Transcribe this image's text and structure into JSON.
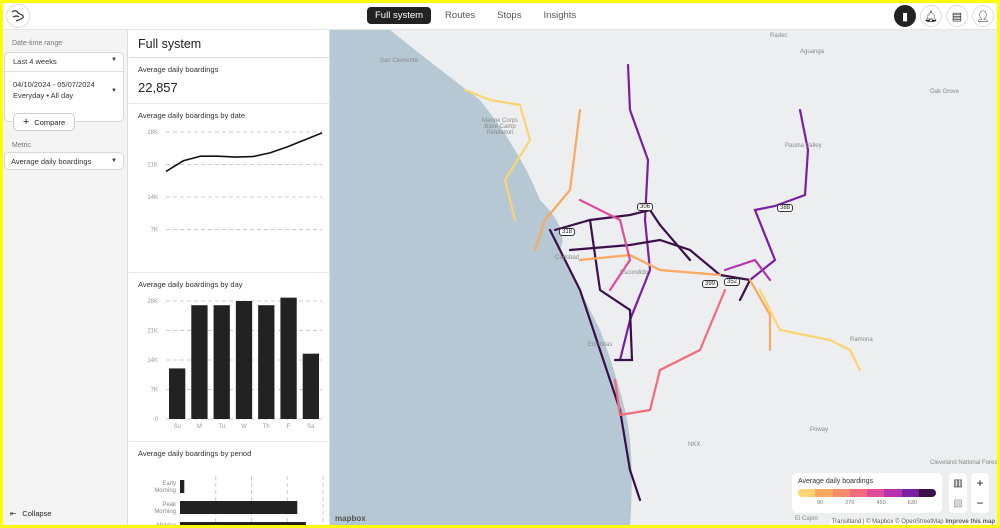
{
  "nav": {
    "tabs": [
      {
        "label": "Full system",
        "active": true
      },
      {
        "label": "Routes"
      },
      {
        "label": "Stops"
      },
      {
        "label": "Insights"
      }
    ],
    "icons": [
      "chart-icon",
      "bell-icon",
      "message-icon",
      "user-icon"
    ]
  },
  "sidebar": {
    "date_label": "Date-time range",
    "range": "Last 4 weeks",
    "dates": "04/10/2024 - 05/07/2024",
    "days": "Everyday • All day",
    "compare": "Compare",
    "metric_label": "Metric",
    "metric": "Average daily boardings",
    "collapse": "Collapse"
  },
  "panel": {
    "title": "Full system",
    "kpi_label": "Average daily boardings",
    "kpi_value": "22,857"
  },
  "chart_data": [
    {
      "type": "line",
      "title": "Average daily boardings by date",
      "yticks": [
        "28K",
        "21K",
        "14K",
        "7K"
      ],
      "ylim": [
        0,
        28000
      ],
      "values": [
        19500,
        21800,
        22800,
        22800,
        22600,
        22700,
        23500,
        24800,
        26300,
        27800
      ],
      "grid": true
    },
    {
      "type": "bar",
      "title": "Average daily boardings by day",
      "categories": [
        "Su",
        "M",
        "Tu",
        "W",
        "Th",
        "F",
        "Sa"
      ],
      "values": [
        12000,
        27000,
        27000,
        28000,
        27000,
        28800,
        15500
      ],
      "yticks": [
        "28K",
        "21K",
        "14K",
        "7K",
        "0"
      ],
      "ylim": [
        0,
        28000
      ],
      "grid": true
    },
    {
      "type": "bar",
      "orientation": "horizontal",
      "title": "Average daily boardings by period",
      "categories": [
        "Early Morning",
        "Peak Morning",
        "Midday"
      ],
      "values": [
        0.03,
        0.82,
        0.88
      ]
    }
  ],
  "map": {
    "labels": [
      "San Clemente",
      "Marine Corps Base Camp Pendleton",
      "Radec",
      "Aguanga",
      "Oak Grove",
      "Pauma Valley",
      "Carlsbad",
      "Encinitas",
      "Escondido",
      "Ramona",
      "Poway",
      "NKX",
      "Cleveland National Forest",
      "El Cajon"
    ],
    "shields": [
      "306",
      "388",
      "318",
      "399",
      "352"
    ],
    "legend": {
      "title": "Average daily boardings",
      "ticks": [
        "90",
        "270",
        "450",
        "630"
      ],
      "colors": [
        "#fcd473",
        "#fca85e",
        "#f98c6a",
        "#f16b7c",
        "#e04c9b",
        "#b631b0",
        "#7b1fa2",
        "#3a0f4a"
      ]
    },
    "attribution": "Transitland | © Mapbox © OpenStreetMap",
    "improve": "Improve this map",
    "brand": "mapbox"
  }
}
